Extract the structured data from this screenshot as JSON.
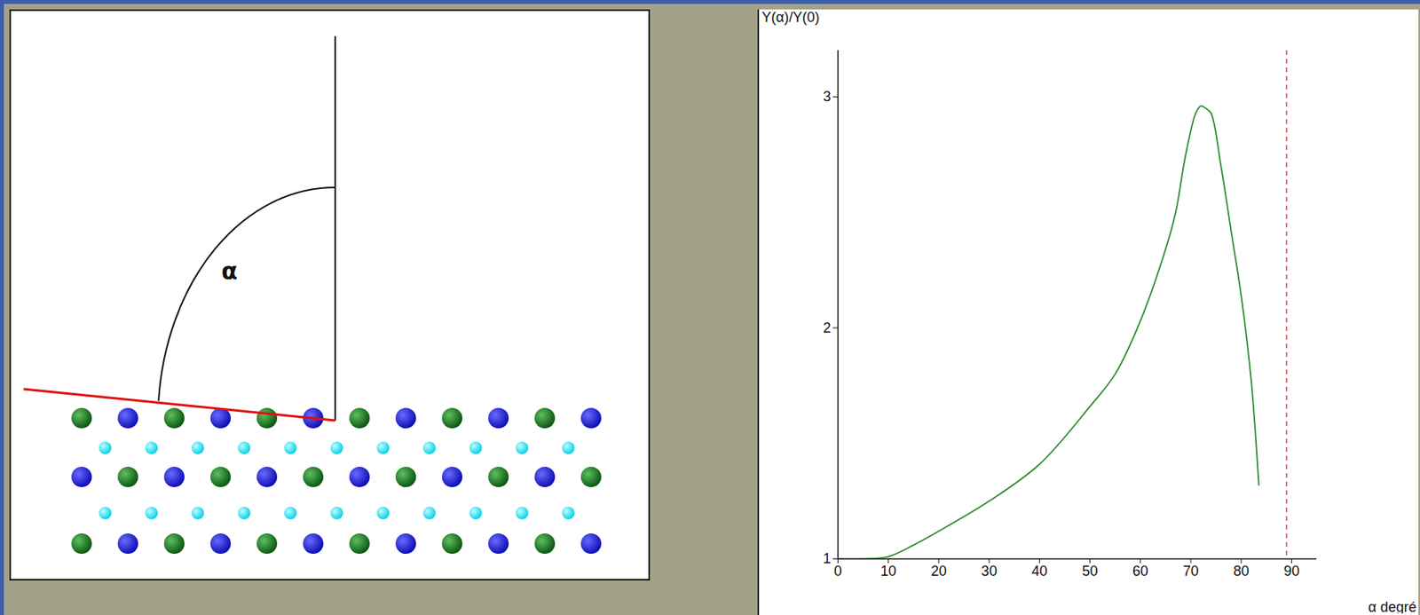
{
  "chart_data": {
    "type": "line",
    "x_label": "α degré",
    "y_label": "Y(α)/Y(0)",
    "x": [
      0,
      5,
      10,
      15,
      20,
      30,
      40,
      50,
      55,
      60,
      65,
      67,
      69,
      71,
      72,
      73,
      74,
      76,
      78,
      80,
      82,
      83.5
    ],
    "values": [
      1.0,
      1.0,
      1.01,
      1.06,
      1.12,
      1.25,
      1.41,
      1.66,
      1.8,
      2.03,
      2.34,
      2.5,
      2.75,
      2.93,
      2.96,
      2.95,
      2.93,
      2.7,
      2.42,
      2.14,
      1.77,
      1.32
    ],
    "color": "#2e8b2e",
    "xlim": [
      0,
      95
    ],
    "ylim": [
      1,
      3.2
    ],
    "xticks": [
      0,
      10,
      20,
      30,
      40,
      50,
      60,
      70,
      80,
      90
    ],
    "yticks": [
      1,
      2,
      3
    ],
    "reference_x": 89,
    "grid": false
  },
  "diagram": {
    "angle_label": "α"
  }
}
